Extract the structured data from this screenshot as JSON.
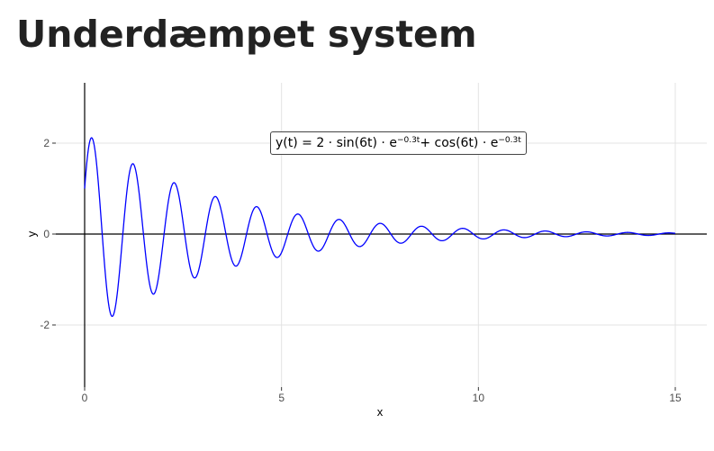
{
  "page": {
    "title": "Underdæmpet system"
  },
  "chart_data": {
    "type": "line",
    "title": "",
    "xlabel": "x",
    "ylabel": "y",
    "xlim": [
      0,
      15
    ],
    "ylim": [
      -3.4,
      3.4
    ],
    "xticks": [
      0,
      5,
      10,
      15
    ],
    "yticks": [
      -2,
      0,
      2
    ],
    "grid": true,
    "legend": "none",
    "series": [
      {
        "function": "2*sin(6t)*exp(-0.3t) + cos(6t)*exp(-0.3t)",
        "t_range": [
          0,
          15
        ],
        "color": "#0000ff"
      }
    ],
    "annotation": {
      "lhs": "y(t) = 2 · sin(6t) · e",
      "exp1": "−0.3t",
      "mid": " + cos(6t) · e",
      "exp2": "−0.3t"
    },
    "zero_line": {
      "color": "#000000"
    }
  }
}
